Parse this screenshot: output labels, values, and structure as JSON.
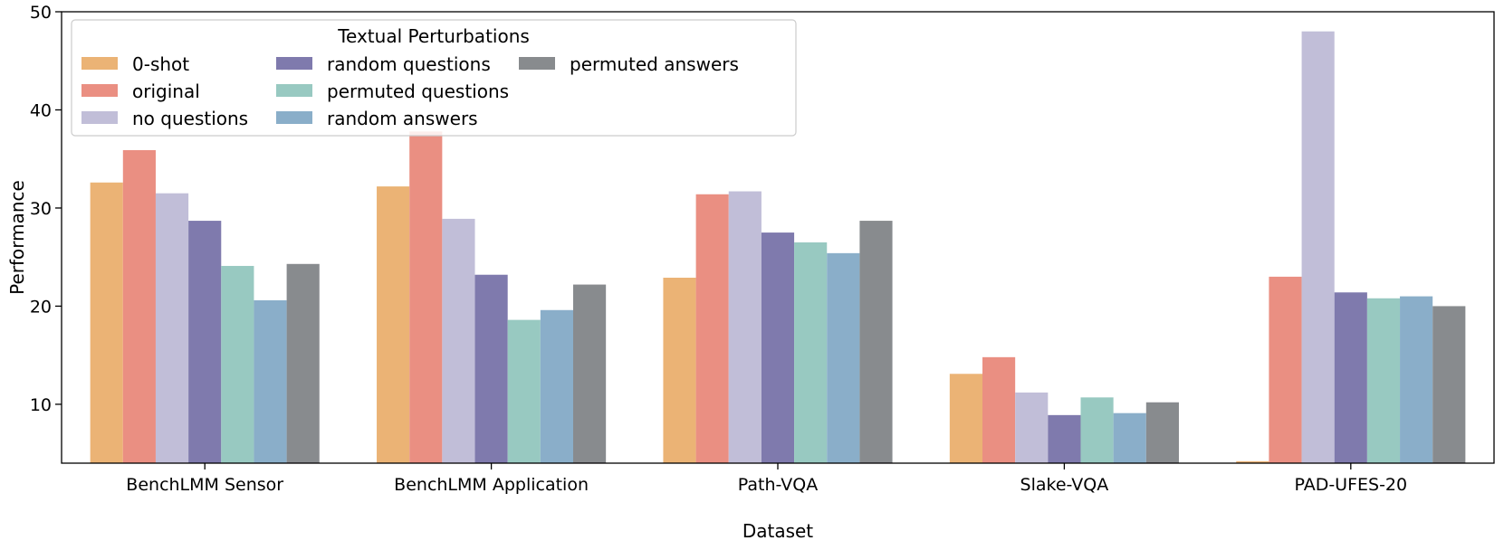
{
  "chart_data": {
    "type": "bar",
    "title": "",
    "xlabel": "Dataset",
    "ylabel": "Performance",
    "ylim": [
      4,
      50
    ],
    "yticks": [
      10,
      20,
      30,
      40,
      50
    ],
    "grid": false,
    "legend": {
      "title": "Textual Perturbations",
      "position": "top-left",
      "columns": 3
    },
    "categories": [
      "BenchLMM Sensor",
      "BenchLMM Application",
      "Path-VQA",
      "Slake-VQA",
      "PAD-UFES-20"
    ],
    "series": [
      {
        "name": "0-shot",
        "color": "#EBB375",
        "values": [
          32.6,
          32.2,
          22.9,
          13.1,
          4.2
        ]
      },
      {
        "name": "original",
        "color": "#EA8F82",
        "values": [
          35.9,
          37.8,
          31.4,
          14.8,
          23.0
        ]
      },
      {
        "name": "no questions",
        "color": "#C1BED8",
        "values": [
          31.5,
          28.9,
          31.7,
          11.2,
          48.0
        ]
      },
      {
        "name": "random questions",
        "color": "#7F7AAD",
        "values": [
          28.7,
          23.2,
          27.5,
          8.9,
          21.4
        ]
      },
      {
        "name": "permuted questions",
        "color": "#98C9C1",
        "values": [
          24.1,
          18.6,
          26.5,
          10.7,
          20.8
        ]
      },
      {
        "name": "random answers",
        "color": "#8AAEC9",
        "values": [
          20.6,
          19.6,
          25.4,
          9.1,
          21.0
        ]
      },
      {
        "name": "permuted answers",
        "color": "#888B8E",
        "values": [
          24.3,
          22.2,
          28.7,
          10.2,
          20.0
        ]
      }
    ]
  }
}
